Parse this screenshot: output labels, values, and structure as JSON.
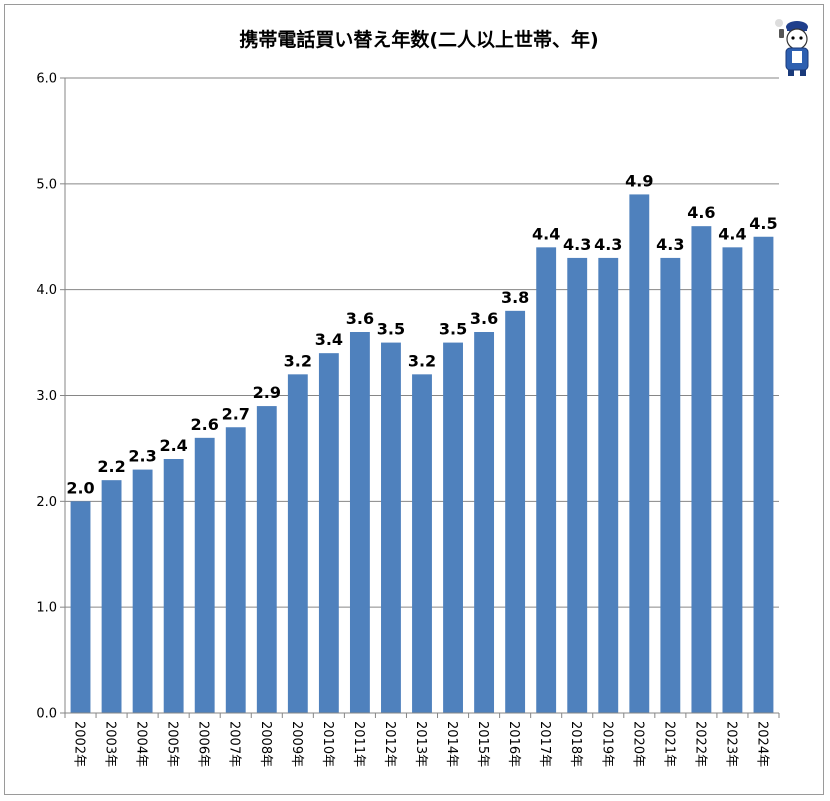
{
  "chart_data": {
    "type": "bar",
    "title": "携帯電話買い替え年数(二人以上世帯、年)",
    "xlabel": "",
    "ylabel": "",
    "ylim": [
      0,
      6
    ],
    "yticks": [
      "0.0",
      "1.0",
      "2.0",
      "3.0",
      "4.0",
      "5.0",
      "6.0"
    ],
    "grid": true,
    "categories": [
      "2002年",
      "2003年",
      "2004年",
      "2005年",
      "2006年",
      "2007年",
      "2008年",
      "2009年",
      "2010年",
      "2011年",
      "2012年",
      "2013年",
      "2014年",
      "2015年",
      "2016年",
      "2017年",
      "2018年",
      "2019年",
      "2020年",
      "2021年",
      "2022年",
      "2023年",
      "2024年"
    ],
    "values": [
      2.0,
      2.2,
      2.3,
      2.4,
      2.6,
      2.7,
      2.9,
      3.2,
      3.4,
      3.6,
      3.5,
      3.2,
      3.5,
      3.6,
      3.8,
      4.4,
      4.3,
      4.3,
      4.9,
      4.3,
      4.6,
      4.4,
      4.5
    ],
    "value_labels": [
      "2.0",
      "2.2",
      "2.3",
      "2.4",
      "2.6",
      "2.7",
      "2.9",
      "3.2",
      "3.4",
      "3.6",
      "3.5",
      "3.2",
      "3.5",
      "3.6",
      "3.8",
      "4.4",
      "4.3",
      "4.3",
      "4.9",
      "4.3",
      "4.6",
      "4.4",
      "4.5"
    ],
    "bar_color": "#4f81bd",
    "grid_color": "#868686"
  },
  "mascot": {
    "icon": "mascot-character-icon"
  }
}
